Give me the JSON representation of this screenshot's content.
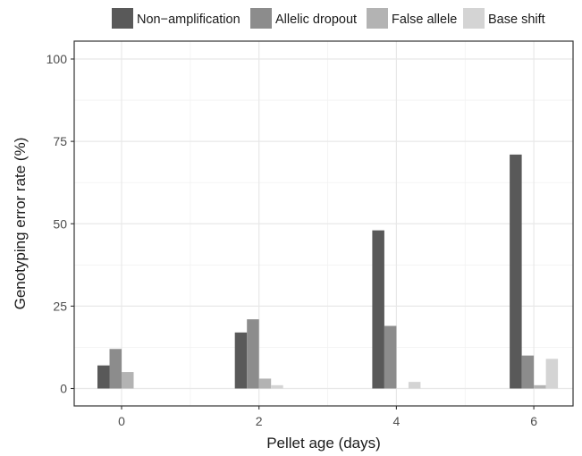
{
  "chart_data": {
    "type": "bar",
    "xlabel": "Pellet age (days)",
    "ylabel": "Genotyping error rate (%)",
    "categories": [
      "0",
      "2",
      "4",
      "6"
    ],
    "ylim": [
      0,
      100
    ],
    "yticks": [
      0,
      25,
      50,
      75,
      100
    ],
    "grid": true,
    "legend_position": "top",
    "series": [
      {
        "name": "Non−amplification",
        "color": "#595959",
        "values": [
          7,
          17,
          48,
          71
        ]
      },
      {
        "name": "Allelic dropout",
        "color": "#8c8c8c",
        "values": [
          12,
          21,
          19,
          10
        ]
      },
      {
        "name": "False allele",
        "color": "#b3b3b3",
        "values": [
          5,
          3,
          0,
          1
        ]
      },
      {
        "name": "Base shift",
        "color": "#d4d4d4",
        "values": [
          0,
          1,
          2,
          9
        ]
      }
    ]
  }
}
